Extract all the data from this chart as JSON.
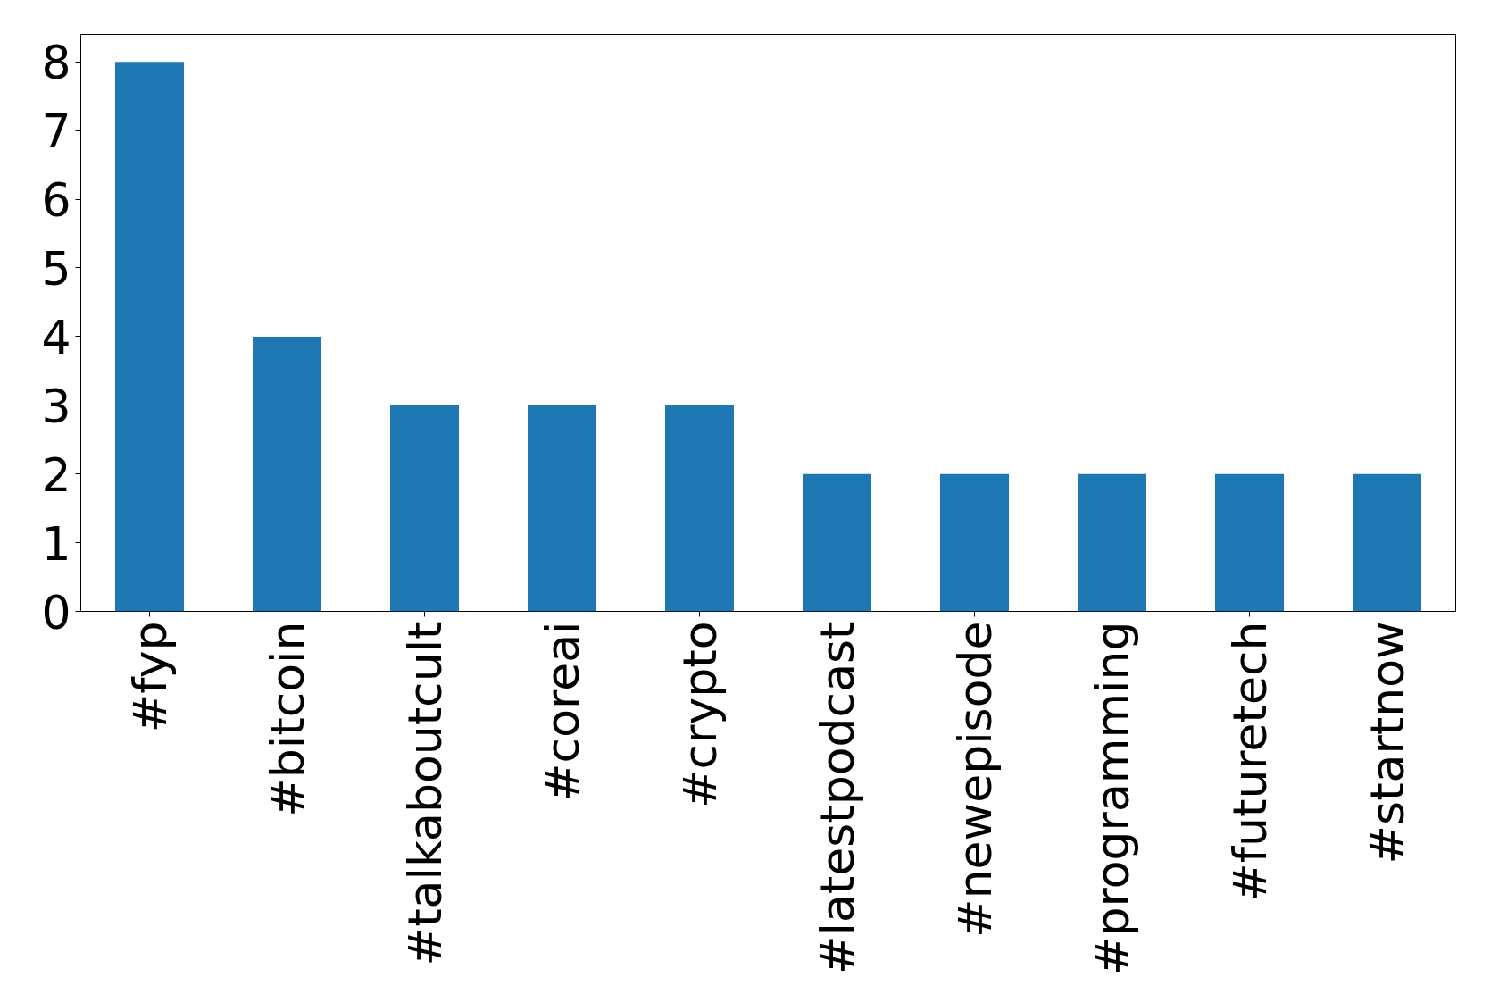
{
  "chart_data": {
    "type": "bar",
    "categories": [
      "#fyp",
      "#bitcoin",
      "#talkaboutcult",
      "#coreai",
      "#crypto",
      "#latestpodcast",
      "#newepisode",
      "#programming",
      "#futuretech",
      "#startnow"
    ],
    "values": [
      8,
      4,
      3,
      3,
      3,
      2,
      2,
      2,
      2,
      2
    ],
    "color": "#1f77b4",
    "ylim": [
      0,
      8.4
    ],
    "yticks": [
      0,
      1,
      2,
      3,
      4,
      5,
      6,
      7,
      8
    ],
    "grid": false
  }
}
